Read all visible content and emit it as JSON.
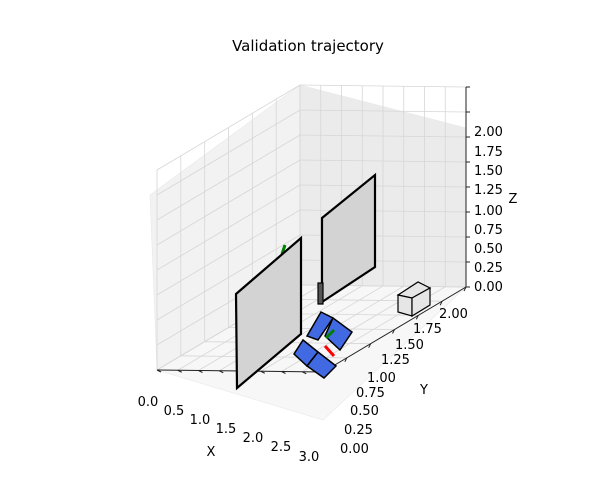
{
  "chart_data": {
    "type": "3d-scene",
    "title": "Validation trajectory",
    "xlabel": "X",
    "ylabel": "Y",
    "zlabel": "Z",
    "xlim": [
      0,
      3
    ],
    "ylim": [
      0,
      2
    ],
    "zlim": [
      0,
      2
    ],
    "x_ticks": [
      "0.0",
      "0.5",
      "1.0",
      "1.5",
      "2.0",
      "2.5",
      "3.0"
    ],
    "y_ticks": [
      "0.00",
      "0.25",
      "0.50",
      "0.75",
      "1.00",
      "1.25",
      "1.50",
      "1.75",
      "2.00"
    ],
    "z_ticks": [
      "0.00",
      "0.25",
      "0.50",
      "0.75",
      "1.00",
      "1.25",
      "1.50",
      "1.75",
      "2.00"
    ],
    "grid": true,
    "colors": {
      "wall_fill": "#d3d3d3",
      "wall_edge": "#000000",
      "robot_fill": "#4169e1",
      "x_axis_frame": "#ff0000",
      "y_axis_frame": "#008000",
      "box_fill": "#e6e6e6"
    }
  }
}
